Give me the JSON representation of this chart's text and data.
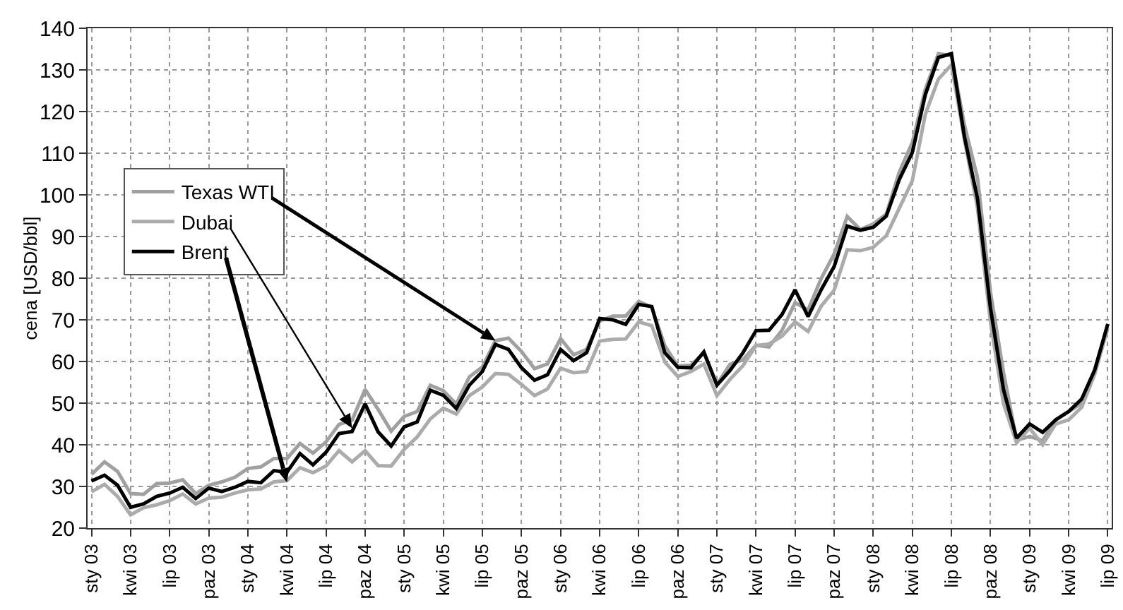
{
  "chart_data": {
    "type": "line",
    "ylabel": "cena [USD/bbl]",
    "categories": [
      "sty 03",
      null,
      null,
      "kwi 03",
      null,
      null,
      "lip 03",
      null,
      null,
      "paz 03",
      null,
      null,
      "sty 04",
      null,
      null,
      "kwi 04",
      null,
      null,
      "lip 04",
      null,
      null,
      "paz 04",
      null,
      null,
      "sty 05",
      null,
      null,
      "kwi 05",
      null,
      null,
      "lip 05",
      null,
      null,
      "paz 05",
      null,
      null,
      "sty 06",
      null,
      null,
      "kwi 06",
      null,
      null,
      "lip 06",
      null,
      null,
      "paz 06",
      null,
      null,
      "sty 07",
      null,
      null,
      "kwi 07",
      null,
      null,
      "lip 07",
      null,
      null,
      "paz 07",
      null,
      null,
      "sty 08",
      null,
      null,
      "kwi 08",
      null,
      null,
      "lip 08",
      null,
      null,
      "paz 08",
      null,
      null,
      "sty 09",
      null,
      null,
      "kwi 09",
      null,
      null,
      "lip 09"
    ],
    "series": [
      {
        "name": "Texas WTI",
        "color": "#a0a0a0",
        "values": [
          32.9,
          35.9,
          33.6,
          28.3,
          28.1,
          30.7,
          30.8,
          31.6,
          28.3,
          30.3,
          31.1,
          32.2,
          34.3,
          34.7,
          36.7,
          36.7,
          40.3,
          38,
          40.7,
          44.9,
          45.9,
          53.3,
          48.5,
          43.3,
          46.8,
          48,
          54.3,
          53,
          49.8,
          56.3,
          58.7,
          65,
          65.6,
          62.4,
          58.3,
          59.4,
          65.5,
          61.6,
          62.9,
          69.7,
          70.9,
          70.9,
          74.4,
          73,
          63.8,
          58.9,
          59.1,
          62,
          54.5,
          59.3,
          60.4,
          63.9,
          63.5,
          67.5,
          74.1,
          72.4,
          79.9,
          85.8,
          94.8,
          91.7,
          93,
          95.4,
          105.5,
          112.6,
          125.4,
          133.9,
          133.4,
          116.7,
          104.1,
          76.6,
          57.3,
          41.1,
          42,
          41,
          46,
          48,
          50,
          58,
          69
        ]
      },
      {
        "name": "Dubai",
        "color": "#ababab",
        "values": [
          28.7,
          30.5,
          27.6,
          23.2,
          24.9,
          25.6,
          26.6,
          28.2,
          25.8,
          27.2,
          27.4,
          28.4,
          29.2,
          29.4,
          31.1,
          31.4,
          34.5,
          33.3,
          34.9,
          38.6,
          35.9,
          38.6,
          35,
          34.9,
          38.9,
          41.9,
          46.2,
          48.8,
          47.4,
          51.8,
          53.9,
          57.1,
          56.9,
          54.5,
          51.8,
          53.4,
          58.4,
          57.3,
          57.6,
          64.9,
          65.3,
          65.4,
          69.5,
          68.6,
          59.9,
          56.4,
          57.6,
          59.4,
          51.8,
          55.7,
          59,
          63.8,
          64.2,
          66.1,
          69.5,
          67.2,
          73.3,
          77.1,
          86.8,
          86.6,
          87.4,
          90.2,
          96.8,
          103.4,
          119.4,
          127.8,
          131.2,
          113.2,
          96.9,
          69.4,
          49.8,
          40.5,
          44,
          40,
          45,
          46,
          49,
          57,
          68
        ]
      },
      {
        "name": "Brent",
        "color": "#000000",
        "values": [
          31.3,
          32.7,
          30.3,
          25,
          25.8,
          27.6,
          28.4,
          29.8,
          27.1,
          29.6,
          28.8,
          29.8,
          31.2,
          30.9,
          33.8,
          33.4,
          37.9,
          35.2,
          38.2,
          42.7,
          43.2,
          49.8,
          43.1,
          39.7,
          44.3,
          45.5,
          53.1,
          51.9,
          48.7,
          54.3,
          57.6,
          64.1,
          62.9,
          58.5,
          55.5,
          56.8,
          62.9,
          60.2,
          62.1,
          70.3,
          70,
          68.9,
          73.7,
          73.2,
          62.1,
          58.6,
          58.5,
          62.3,
          54.3,
          57.8,
          62.1,
          67.4,
          67.5,
          71.3,
          77.2,
          70.8,
          77.2,
          82.8,
          92.5,
          91.5,
          92.2,
          94.9,
          103.7,
          110.2,
          124.1,
          133,
          133.9,
          113.9,
          99.1,
          72.7,
          53.2,
          41.6,
          45,
          43,
          46,
          48,
          51,
          58,
          69
        ]
      }
    ],
    "ylim": [
      20,
      140
    ],
    "yticks": [
      20,
      30,
      40,
      50,
      60,
      70,
      80,
      90,
      100,
      110,
      120,
      130,
      140
    ],
    "grid": true,
    "legend": "left",
    "marker": "none",
    "line_style": "solid"
  }
}
